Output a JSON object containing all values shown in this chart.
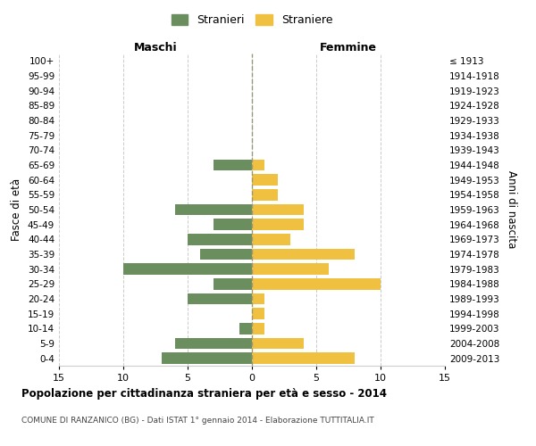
{
  "age_groups": [
    "100+",
    "95-99",
    "90-94",
    "85-89",
    "80-84",
    "75-79",
    "70-74",
    "65-69",
    "60-64",
    "55-59",
    "50-54",
    "45-49",
    "40-44",
    "35-39",
    "30-34",
    "25-29",
    "20-24",
    "15-19",
    "10-14",
    "5-9",
    "0-4"
  ],
  "birth_years": [
    "≤ 1913",
    "1914-1918",
    "1919-1923",
    "1924-1928",
    "1929-1933",
    "1934-1938",
    "1939-1943",
    "1944-1948",
    "1949-1953",
    "1954-1958",
    "1959-1963",
    "1964-1968",
    "1969-1973",
    "1974-1978",
    "1979-1983",
    "1984-1988",
    "1989-1993",
    "1994-1998",
    "1999-2003",
    "2004-2008",
    "2009-2013"
  ],
  "maschi": [
    0,
    0,
    0,
    0,
    0,
    0,
    0,
    3,
    0,
    0,
    6,
    3,
    5,
    4,
    10,
    3,
    5,
    0,
    1,
    6,
    7
  ],
  "femmine": [
    0,
    0,
    0,
    0,
    0,
    0,
    0,
    1,
    2,
    2,
    4,
    4,
    3,
    8,
    6,
    10,
    1,
    1,
    1,
    4,
    8
  ],
  "maschi_color": "#6b8e5e",
  "femmine_color": "#f0c040",
  "title": "Popolazione per cittadinanza straniera per età e sesso - 2014",
  "subtitle": "COMUNE DI RANZANICO (BG) - Dati ISTAT 1° gennaio 2014 - Elaborazione TUTTITALIA.IT",
  "xlabel_left": "Maschi",
  "xlabel_right": "Femmine",
  "ylabel_left": "Fasce di età",
  "ylabel_right": "Anni di nascita",
  "legend_maschi": "Stranieri",
  "legend_femmine": "Straniere",
  "xlim": 15,
  "bg_color": "#ffffff",
  "grid_color": "#cccccc",
  "bar_height": 0.75
}
